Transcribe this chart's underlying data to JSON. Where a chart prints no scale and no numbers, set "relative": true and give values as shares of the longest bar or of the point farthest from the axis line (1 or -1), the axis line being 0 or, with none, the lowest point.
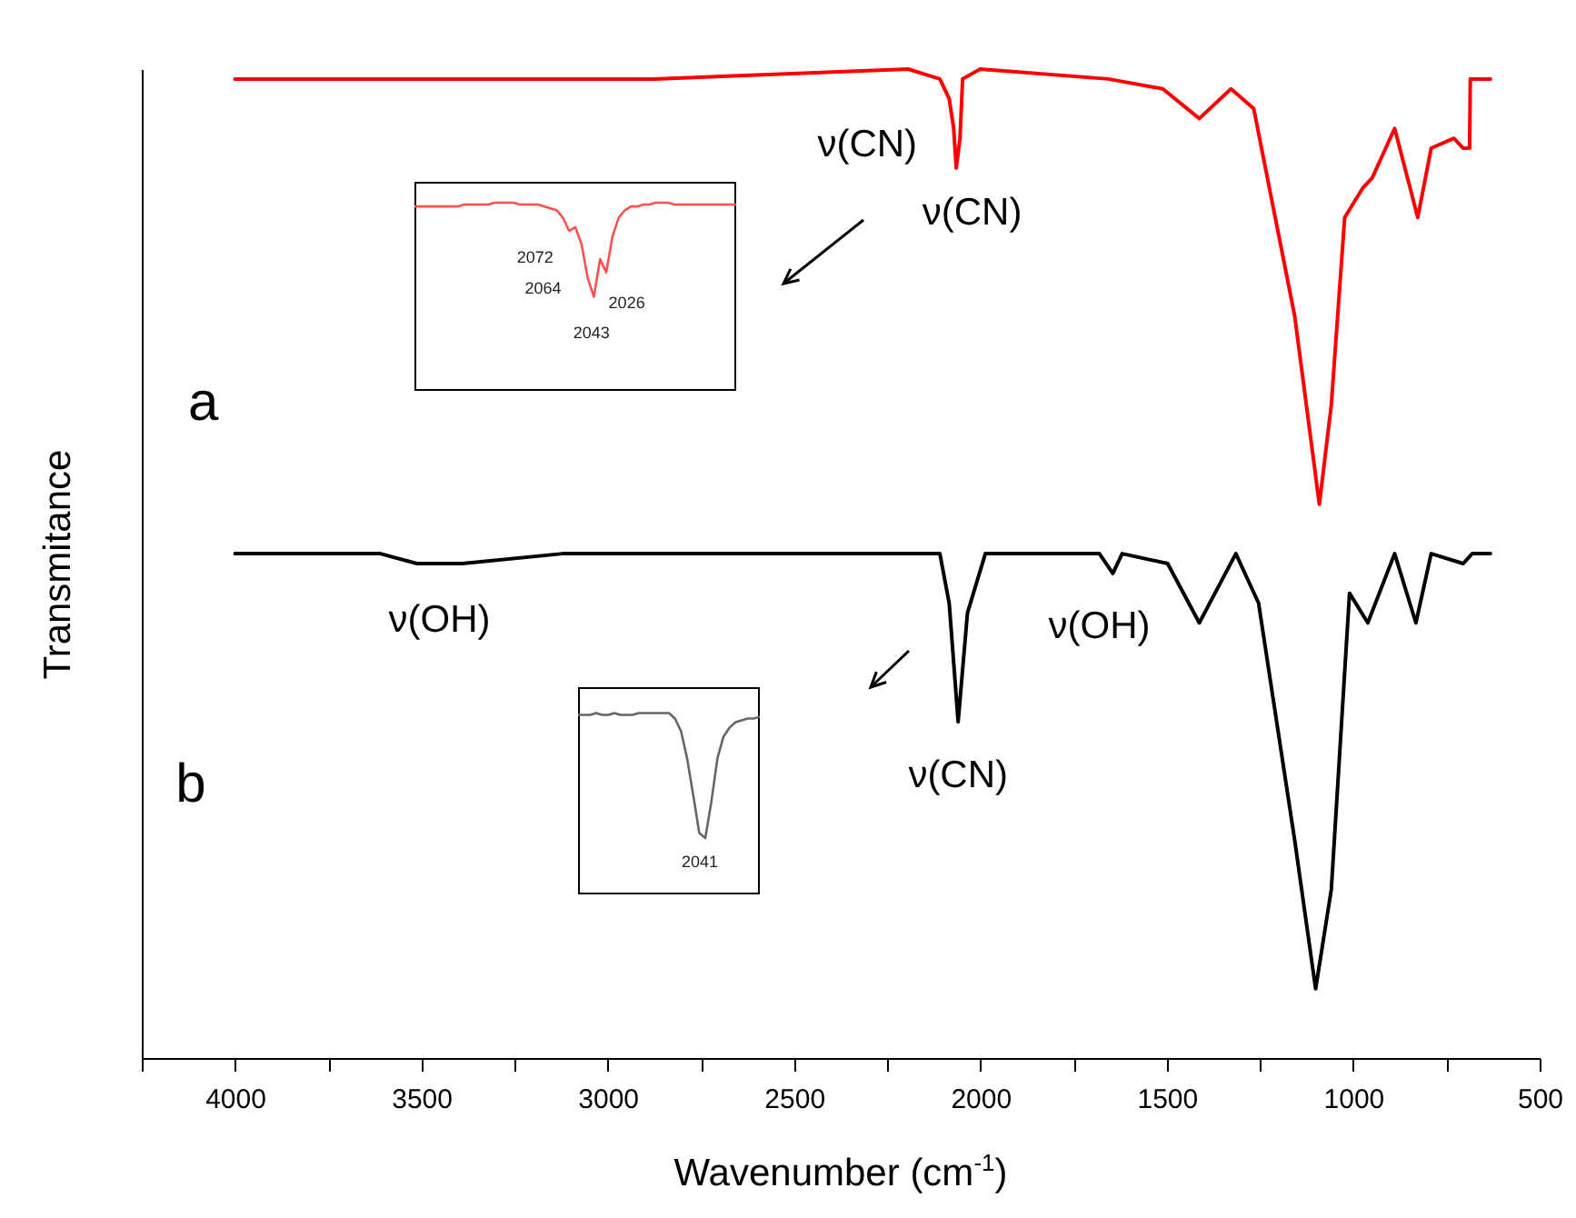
{
  "chart_data": [
    {
      "type": "line",
      "xlabel": "Wavenumber (cm$^{-1}$)",
      "ylabel": "Transmitance",
      "relative": true,
      "tick_labels": "x",
      "xlim": [
        4250,
        500
      ],
      "xticks": [
        {
          "value": 4250,
          "label": null
        },
        4000,
        {
          "value": 3750,
          "label": null
        },
        3500,
        {
          "value": 3250,
          "label": null
        },
        3000,
        {
          "value": 2750,
          "label": null
        },
        2500,
        {
          "value": 2250,
          "label": null
        },
        2000,
        {
          "value": 1750,
          "label": null
        },
        1500,
        {
          "value": 1250,
          "label": null
        },
        1000,
        {
          "value": 750,
          "label": null
        },
        500
      ],
      "series": [
        {
          "color": "#ff0000",
          "x": [
            4000,
            3439,
            2877,
            2194,
            2109,
            2084,
            2072,
            2065,
            2055,
            2048,
            2001,
            1657,
            1511,
            1413,
            1328,
            1267,
            1157,
            1091,
            1059,
            1023,
            974,
            949,
            889,
            827,
            791,
            730,
            705,
            688,
            686,
            632
          ],
          "values": [
            0.99,
            0.99,
            0.99,
            1.0,
            0.99,
            0.97,
            0.94,
            0.9,
            0.93,
            0.99,
            1.0,
            0.99,
            0.98,
            0.95,
            0.98,
            0.96,
            0.75,
            0.56,
            0.66,
            0.85,
            0.88,
            0.89,
            0.94,
            0.85,
            0.92,
            0.93,
            0.92,
            0.92,
            0.99,
            0.99
          ]
        },
        {
          "color": "#000000",
          "x": [
            4000,
            3610,
            3512,
            3390,
            3121,
            2194,
            2109,
            2084,
            2060,
            2035,
            1987,
            1681,
            1645,
            1620,
            1498,
            1413,
            1315,
            1254,
            1157,
            1101,
            1059,
            1010,
            961,
            889,
            832,
            791,
            705,
            681,
            632
          ],
          "values": [
            0.51,
            0.51,
            0.5,
            0.5,
            0.51,
            0.51,
            0.51,
            0.46,
            0.34,
            0.45,
            0.51,
            0.51,
            0.49,
            0.51,
            0.5,
            0.44,
            0.51,
            0.46,
            0.22,
            0.07,
            0.17,
            0.47,
            0.44,
            0.51,
            0.44,
            0.51,
            0.5,
            0.51,
            0.51
          ]
        }
      ],
      "annotations": [
        "ν(CN)",
        "ν(CN)",
        "a",
        "ν(OH)",
        "ν(OH)",
        "ν(CN)",
        "b"
      ]
    },
    {
      "type": "line",
      "relative": true,
      "tick_labels": false,
      "categories": [
        null,
        null,
        null,
        null,
        null,
        null,
        null,
        null,
        null,
        null,
        null,
        null,
        null,
        null,
        null,
        null,
        null,
        null,
        null,
        null,
        null,
        null,
        null,
        null,
        null,
        null,
        null,
        null,
        null,
        null,
        null,
        null,
        null,
        null,
        null,
        null,
        null,
        null,
        null,
        null,
        null,
        null,
        null,
        null,
        null,
        null,
        null,
        null,
        null,
        null,
        null,
        null,
        null
      ],
      "series": [
        {
          "color": "#ff5050",
          "values": [
            0.98,
            0.98,
            0.98,
            0.98,
            0.98,
            0.98,
            0.98,
            0.98,
            0.99,
            0.99,
            0.99,
            0.99,
            0.99,
            1.0,
            1.0,
            1.0,
            1.0,
            0.99,
            0.99,
            0.99,
            0.99,
            0.98,
            0.97,
            0.96,
            0.92,
            0.85,
            0.87,
            0.78,
            0.6,
            0.5,
            0.7,
            0.63,
            0.82,
            0.92,
            0.96,
            0.98,
            0.98,
            0.99,
            0.99,
            1.0,
            1.0,
            1.0,
            0.99,
            0.99,
            0.99,
            0.99,
            0.99,
            0.99,
            0.99,
            0.99,
            0.99,
            0.99,
            0.99
          ]
        }
      ],
      "annotations": [
        "2072",
        "2064",
        "2026",
        "2043"
      ]
    },
    {
      "type": "line",
      "relative": true,
      "tick_labels": false,
      "categories": [
        null,
        null,
        null,
        null,
        null,
        null,
        null,
        null,
        null,
        null,
        null,
        null,
        null,
        null,
        null,
        null,
        null,
        null,
        null,
        null,
        null,
        null,
        null,
        null,
        null,
        null,
        null,
        null,
        null,
        null,
        null
      ],
      "series": [
        {
          "color": "#666666",
          "values": [
            0.99,
            0.99,
            0.99,
            1.0,
            0.99,
            0.99,
            1.0,
            0.99,
            0.99,
            0.99,
            1.0,
            1.0,
            1.0,
            1.0,
            1.0,
            1.0,
            0.97,
            0.9,
            0.75,
            0.55,
            0.34,
            0.31,
            0.51,
            0.75,
            0.87,
            0.92,
            0.95,
            0.96,
            0.97,
            0.97,
            0.98
          ]
        }
      ],
      "annotations": [
        "2041"
      ]
    }
  ]
}
